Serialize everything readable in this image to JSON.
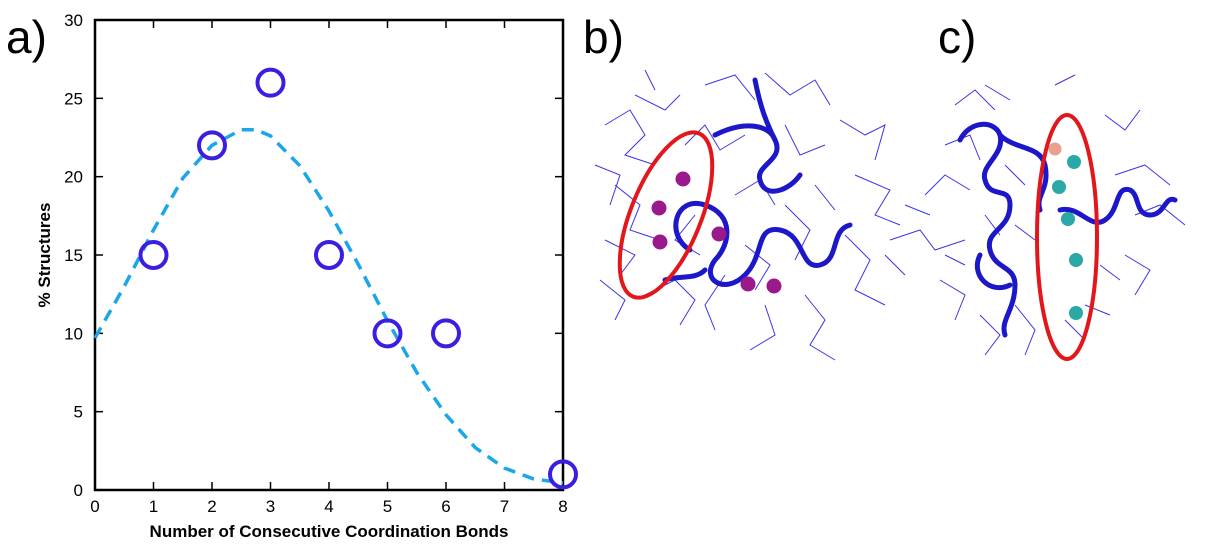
{
  "panels": {
    "a": "a)",
    "b": "b)",
    "c": "c)"
  },
  "chart_data": {
    "type": "scatter",
    "xlabel": "Number of Consecutive Coordination Bonds",
    "ylabel": "% Structures",
    "xlim": [
      0,
      8
    ],
    "ylim": [
      0,
      30
    ],
    "xticks": [
      0,
      1,
      2,
      3,
      4,
      5,
      6,
      7,
      8
    ],
    "yticks": [
      0,
      5,
      10,
      15,
      20,
      25,
      30
    ],
    "grid": false,
    "series": [
      {
        "x": [
          1,
          2,
          3,
          4,
          5,
          6,
          8
        ],
        "y": [
          15,
          22,
          26,
          15,
          10,
          10,
          1
        ],
        "marker": "open-circle",
        "color": "#3a1fe0"
      }
    ],
    "fit_curve": {
      "style": "dashed",
      "color": "#1aa6e8",
      "x": [
        0,
        0.5,
        1,
        1.5,
        2,
        2.5,
        2.75,
        3,
        3.5,
        4,
        4.5,
        5,
        5.5,
        6,
        6.5,
        7,
        7.5,
        8
      ],
      "y": [
        9.7,
        13,
        16.6,
        19.9,
        22.0,
        23.0,
        23.0,
        22.6,
        20.7,
        17.8,
        14.4,
        10.8,
        7.5,
        4.8,
        2.7,
        1.4,
        0.7,
        0.45
      ]
    }
  },
  "molecules": {
    "colors": {
      "backbone": "#1c17c8",
      "sidechain": "#3b34e6",
      "ellipse": "#e3161b",
      "ion_b": "#9a1a8e",
      "ion_c": "#2aa7a7",
      "ion_c_top": "#e8a090"
    }
  }
}
